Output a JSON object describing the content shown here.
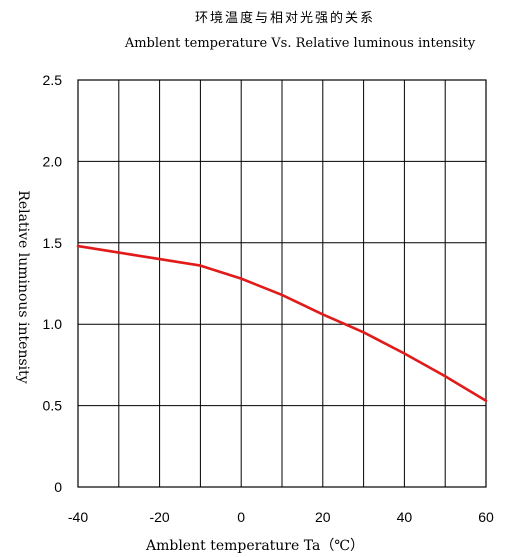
{
  "chart_data": {
    "type": "line",
    "title": "环境温度与相对光强的关系",
    "subtitle": "Amblent temperature  Vs.  Relative luminous intensity",
    "xlabel": "Amblent temperature Ta（℃）",
    "ylabel": "Relative luminous intensity",
    "xlim": [
      -40,
      60
    ],
    "ylim": [
      0,
      2.5
    ],
    "x_ticks": [
      "-40",
      "-20",
      "0",
      "20",
      "40",
      "60"
    ],
    "y_ticks": [
      "0",
      "0.5",
      "1.0",
      "1.5",
      "2.0",
      "2.5"
    ],
    "grid": true,
    "line_color": "#e11a1a",
    "series": [
      {
        "x": [
          -40,
          -30,
          -20,
          -10,
          0,
          10,
          20,
          30,
          40,
          50,
          60
        ],
        "values": [
          1.48,
          1.44,
          1.4,
          1.36,
          1.28,
          1.18,
          1.06,
          0.95,
          0.82,
          0.68,
          0.53
        ]
      }
    ]
  }
}
